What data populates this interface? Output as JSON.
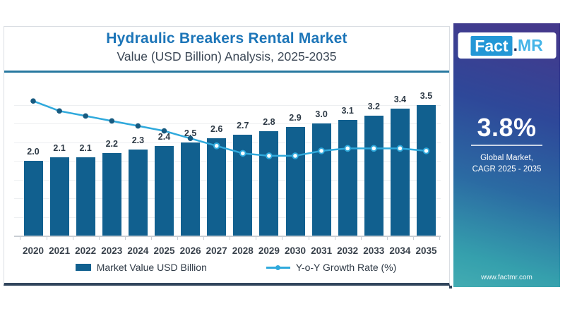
{
  "chart_data": {
    "type": "combo",
    "title": "Hydraulic Breakers Rental Market",
    "subtitle": "Value (USD Billion) Analysis, 2025-2035",
    "categories": [
      "2020",
      "2021",
      "2022",
      "2023",
      "2024",
      "2025",
      "2026",
      "2027",
      "2028",
      "2029",
      "2030",
      "2031",
      "2032",
      "2033",
      "2034",
      "2035"
    ],
    "series": [
      {
        "name": "Market Value USD Billion",
        "type": "bar",
        "values": [
          2.0,
          2.1,
          2.1,
          2.2,
          2.3,
          2.4,
          2.5,
          2.6,
          2.7,
          2.8,
          2.9,
          3.0,
          3.1,
          3.2,
          3.4,
          3.5
        ]
      },
      {
        "name": "Y-o-Y Growth Rate (%)",
        "type": "line",
        "values": [
          5.4,
          5.0,
          4.8,
          4.6,
          4.4,
          4.2,
          3.9,
          3.6,
          3.3,
          3.2,
          3.2,
          3.4,
          3.5,
          3.5,
          3.5,
          3.4
        ]
      }
    ],
    "left_axis": {
      "min": 0,
      "max": 4,
      "label": "Value (USD Billion)",
      "tick_labels_shown": false
    },
    "right_axis": {
      "min": 0,
      "max": 6,
      "label": "Y-o-Y Growth Rate (%)",
      "tick_labels_shown": false
    },
    "grid": "horizontal",
    "legend_position": "bottom",
    "colors": {
      "bar": "#11608F",
      "line": "#2FA9DC",
      "marker_filled": "#175A80",
      "title": "#1C75B8"
    }
  },
  "legend": {
    "bar_label": "Market Value USD Billion",
    "line_label": "Y-o-Y Growth Rate (%)"
  },
  "sidebar": {
    "logo": {
      "fact": "Fact",
      "dot": ".",
      "mr": "MR"
    },
    "stat_value": "3.8%",
    "caption_line1": "Global Market,",
    "caption_line2": "CAGR 2025 - 2035",
    "website": "www.factmr.com"
  }
}
